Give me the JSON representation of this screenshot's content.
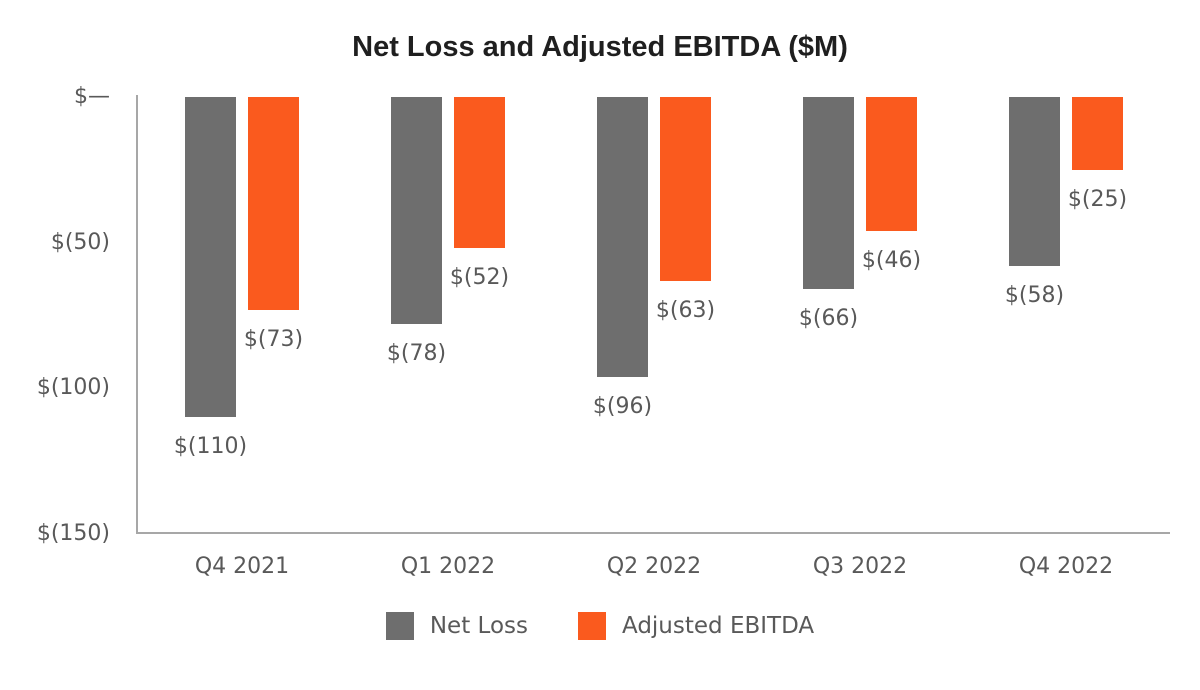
{
  "chart_data": {
    "type": "bar",
    "title": "Net Loss and Adjusted EBITDA ($M)",
    "categories": [
      "Q4 2021",
      "Q1 2022",
      "Q2 2022",
      "Q3 2022",
      "Q4 2022"
    ],
    "series": [
      {
        "name": "Net Loss",
        "color": "#6E6E6E",
        "values": [
          -110,
          -78,
          -96,
          -66,
          -58
        ],
        "labels": [
          "$(110)",
          "$(78)",
          "$(96)",
          "$(66)",
          "$(58)"
        ]
      },
      {
        "name": "Adjusted EBITDA",
        "color": "#FA5A1E",
        "values": [
          -73,
          -52,
          -63,
          -46,
          -25
        ],
        "labels": [
          "$(73)",
          "$(52)",
          "$(63)",
          "$(46)",
          "$(25)"
        ]
      }
    ],
    "xlabel": "",
    "ylabel": "",
    "ylim": [
      -150,
      0
    ],
    "yticks": [
      {
        "value": 0,
        "label": "$—"
      },
      {
        "value": -50,
        "label": "$(50)"
      },
      {
        "value": -100,
        "label": "$(100)"
      },
      {
        "value": -150,
        "label": "$(150)"
      }
    ],
    "grid": false,
    "legend_position": "bottom"
  },
  "colors": {
    "net_loss": "#6E6E6E",
    "adjusted_ebitda": "#FA5A1E",
    "axis": "#A7A7A7",
    "label_text": "#595959",
    "title_text": "#1F1F1F",
    "background": "#FFFFFF"
  }
}
